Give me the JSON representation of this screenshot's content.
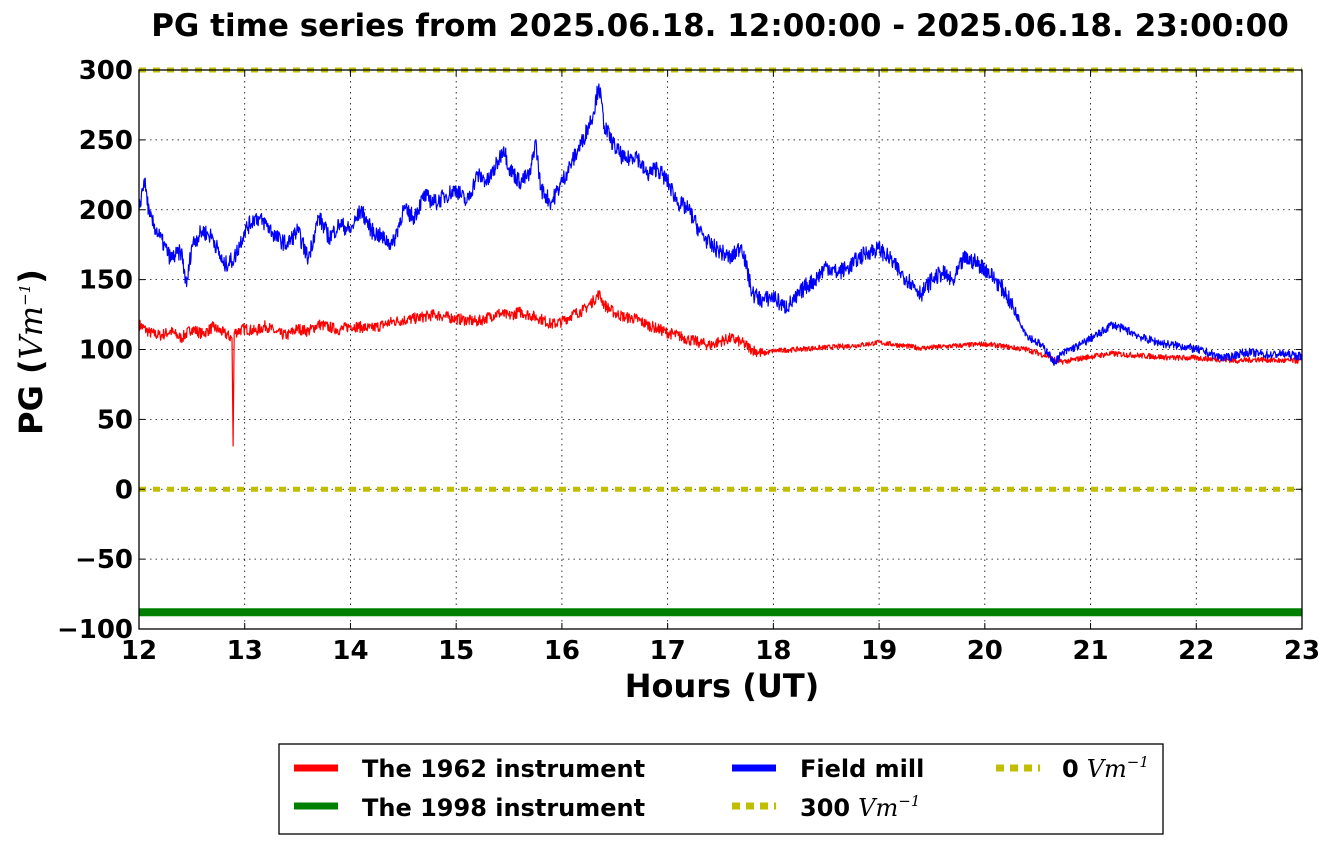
{
  "chart_data": {
    "type": "line",
    "title": "PG time series from 2025.06.18. 12:00:00 - 2025.06.18. 23:00:00",
    "xlabel": "Hours (UT)",
    "ylabel": {
      "text": "PG (",
      "unit": "Vm",
      "exp": "−1",
      "close": ")"
    },
    "xlim": [
      12,
      23
    ],
    "ylim": [
      -100,
      300
    ],
    "xticks": [
      12,
      13,
      14,
      15,
      16,
      17,
      18,
      19,
      20,
      21,
      22,
      23
    ],
    "yticks": [
      -100,
      -50,
      0,
      50,
      100,
      150,
      200,
      250,
      300
    ],
    "ytick_labels": [
      "−100",
      "−50",
      "0",
      "50",
      "100",
      "150",
      "200",
      "250",
      "300"
    ],
    "grid": true,
    "legend_position": "bottom-center",
    "series": [
      {
        "name": "The 1962 instrument",
        "color": "#ff0000",
        "x": [
          12.0,
          12.1,
          12.2,
          12.3,
          12.4,
          12.5,
          12.6,
          12.7,
          12.8,
          12.88,
          12.89,
          12.9,
          13.0,
          13.1,
          13.2,
          13.3,
          13.4,
          13.5,
          13.6,
          13.7,
          13.8,
          13.9,
          14.0,
          14.2,
          14.4,
          14.6,
          14.8,
          15.0,
          15.2,
          15.4,
          15.5,
          15.6,
          15.8,
          15.9,
          16.0,
          16.1,
          16.2,
          16.3,
          16.35,
          16.4,
          16.5,
          16.6,
          16.7,
          16.8,
          16.9,
          17.0,
          17.1,
          17.2,
          17.3,
          17.4,
          17.5,
          17.6,
          17.7,
          17.8,
          17.9,
          18.0,
          18.2,
          18.4,
          18.6,
          18.8,
          19.0,
          19.2,
          19.4,
          19.6,
          19.8,
          20.0,
          20.2,
          20.4,
          20.6,
          20.7,
          20.8,
          21.0,
          21.2,
          21.4,
          21.6,
          21.8,
          22.0,
          22.2,
          22.4,
          22.6,
          22.8,
          23.0
        ],
        "y": [
          118,
          112,
          110,
          113,
          108,
          115,
          111,
          116,
          112,
          108,
          31,
          112,
          115,
          113,
          117,
          112,
          110,
          115,
          113,
          118,
          116,
          114,
          117,
          115,
          120,
          122,
          125,
          122,
          120,
          126,
          124,
          127,
          122,
          118,
          120,
          125,
          128,
          135,
          140,
          132,
          126,
          123,
          122,
          118,
          115,
          112,
          110,
          107,
          105,
          103,
          106,
          108,
          105,
          100,
          97,
          99,
          100,
          101,
          102,
          103,
          105,
          103,
          101,
          102,
          103,
          104,
          102,
          100,
          95,
          91,
          92,
          95,
          97,
          96,
          95,
          94,
          94,
          93,
          92,
          93,
          92,
          92
        ]
      },
      {
        "name": "Field mill",
        "color": "#0000ff",
        "x": [
          12.0,
          12.05,
          12.1,
          12.2,
          12.3,
          12.4,
          12.45,
          12.5,
          12.6,
          12.7,
          12.8,
          12.9,
          13.0,
          13.1,
          13.2,
          13.3,
          13.4,
          13.5,
          13.6,
          13.7,
          13.8,
          13.9,
          14.0,
          14.1,
          14.2,
          14.3,
          14.4,
          14.5,
          14.6,
          14.7,
          14.8,
          14.9,
          15.0,
          15.1,
          15.2,
          15.3,
          15.4,
          15.45,
          15.5,
          15.6,
          15.7,
          15.75,
          15.8,
          15.9,
          16.0,
          16.1,
          16.2,
          16.3,
          16.35,
          16.4,
          16.5,
          16.6,
          16.7,
          16.8,
          16.9,
          17.0,
          17.1,
          17.2,
          17.3,
          17.4,
          17.5,
          17.6,
          17.7,
          17.8,
          17.9,
          18.0,
          18.1,
          18.2,
          18.3,
          18.4,
          18.5,
          18.6,
          18.7,
          18.8,
          18.9,
          19.0,
          19.1,
          19.2,
          19.3,
          19.4,
          19.5,
          19.6,
          19.7,
          19.8,
          19.9,
          20.0,
          20.1,
          20.2,
          20.3,
          20.4,
          20.5,
          20.6,
          20.65,
          20.7,
          20.8,
          20.9,
          21.0,
          21.1,
          21.2,
          21.3,
          21.4,
          21.5,
          21.6,
          21.7,
          21.8,
          21.9,
          22.0,
          22.1,
          22.2,
          22.3,
          22.4,
          22.5,
          22.6,
          22.7,
          22.8,
          22.9,
          23.0
        ],
        "y": [
          200,
          222,
          195,
          180,
          165,
          170,
          145,
          175,
          185,
          180,
          160,
          165,
          185,
          195,
          190,
          180,
          175,
          185,
          165,
          195,
          180,
          190,
          185,
          200,
          185,
          180,
          175,
          200,
          195,
          210,
          205,
          210,
          215,
          205,
          225,
          220,
          235,
          245,
          230,
          220,
          225,
          250,
          215,
          205,
          220,
          235,
          250,
          270,
          290,
          260,
          245,
          235,
          240,
          225,
          230,
          220,
          205,
          200,
          185,
          175,
          170,
          165,
          175,
          140,
          135,
          138,
          130,
          135,
          145,
          150,
          160,
          155,
          158,
          165,
          170,
          172,
          165,
          155,
          148,
          140,
          150,
          155,
          148,
          165,
          163,
          158,
          150,
          140,
          125,
          110,
          105,
          98,
          90,
          95,
          100,
          103,
          108,
          112,
          118,
          115,
          112,
          108,
          106,
          104,
          103,
          102,
          100,
          98,
          95,
          94,
          97,
          98,
          97,
          96,
          97,
          96,
          95
        ]
      },
      {
        "name": "The 1998 instrument",
        "color": "#008000",
        "x": [
          12,
          23
        ],
        "y": [
          -88,
          -88
        ]
      },
      {
        "name": "300 Vm−1",
        "color": "#bfbf00",
        "dashed": true,
        "x": [
          12,
          23
        ],
        "y": [
          300,
          300
        ]
      },
      {
        "name": "0 Vm−1",
        "color": "#bfbf00",
        "dashed": true,
        "x": [
          12,
          23
        ],
        "y": [
          0,
          0
        ]
      }
    ],
    "legend": [
      {
        "label": "The 1962 instrument",
        "color": "#ff0000",
        "style": "solid"
      },
      {
        "label": "The 1998 instrument",
        "color": "#008000",
        "style": "solid"
      },
      {
        "label": "Field mill",
        "color": "#0000ff",
        "style": "solid"
      },
      {
        "label": "300",
        "unit": "Vm",
        "exp": "−1",
        "color": "#bfbf00",
        "style": "dotted"
      },
      {
        "label": "0",
        "unit": "Vm",
        "exp": "−1",
        "color": "#bfbf00",
        "style": "dotted"
      }
    ]
  }
}
